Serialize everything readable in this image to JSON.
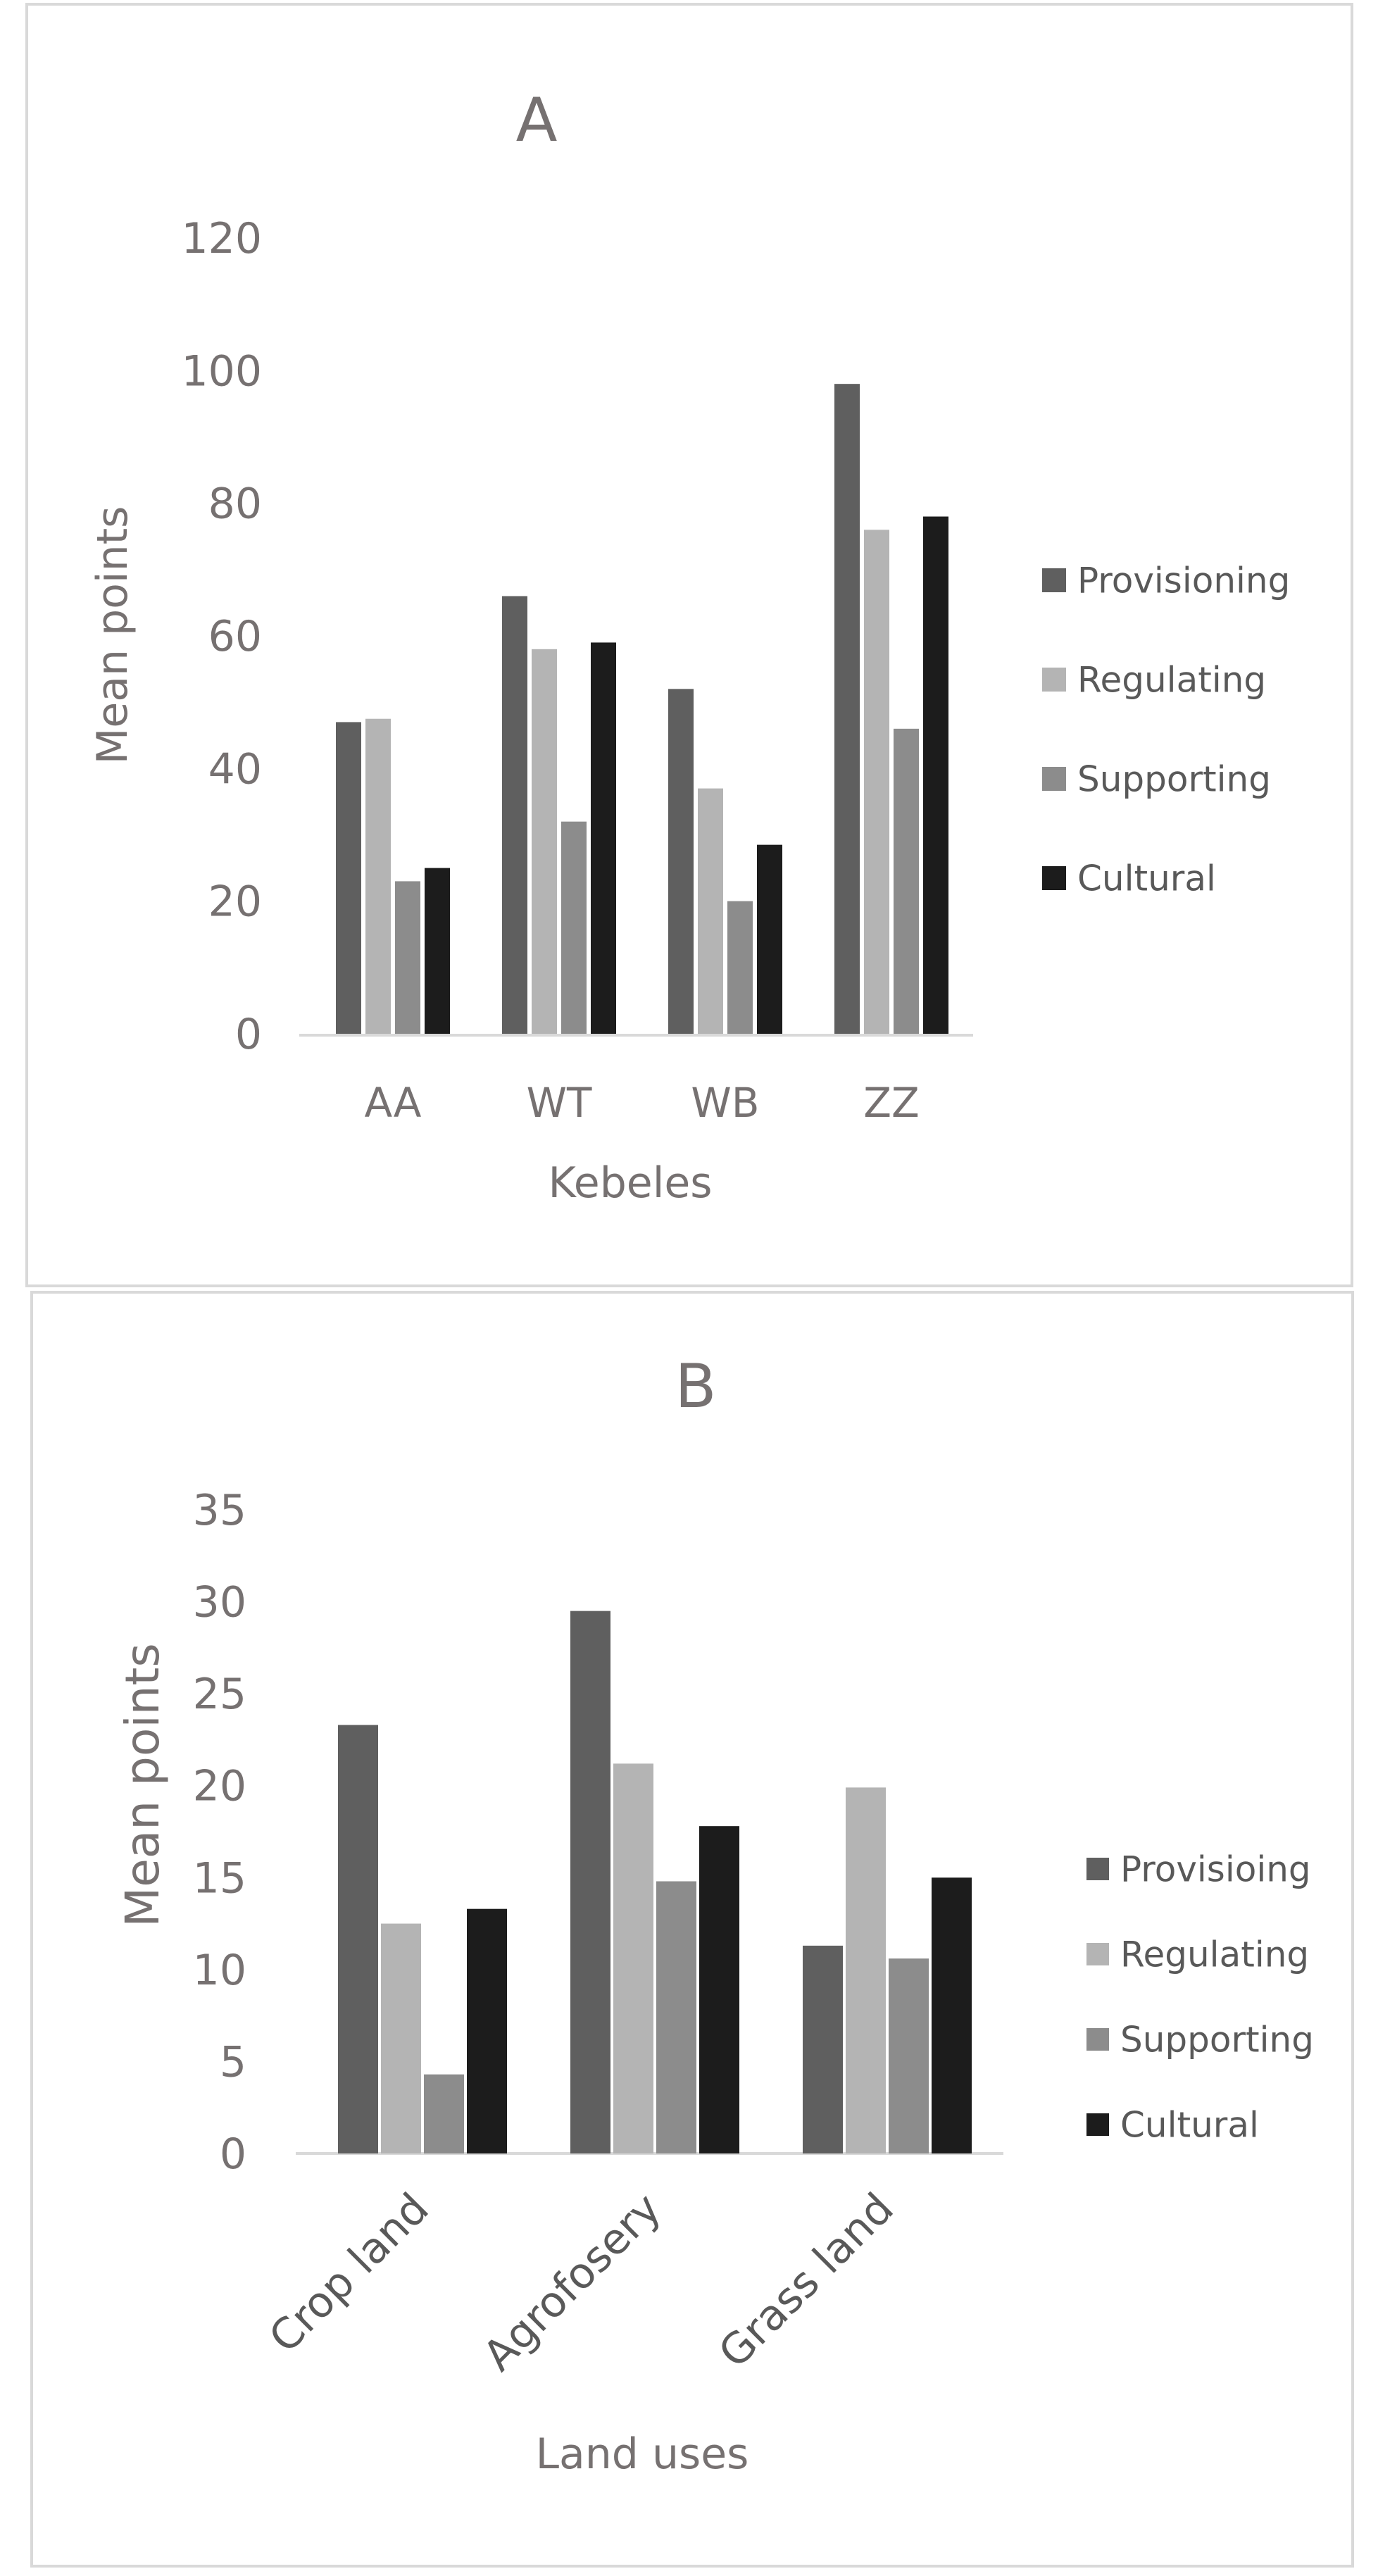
{
  "chart_data": [
    {
      "type": "bar",
      "title": "A",
      "xlabel": "Kebeles",
      "ylabel": "Mean points",
      "categories": [
        "AA",
        "WT",
        "WB",
        "ZZ"
      ],
      "ylim": [
        0,
        120
      ],
      "yticks": [
        "0",
        "20",
        "40",
        "60",
        "80",
        "100",
        "120"
      ],
      "grid": false,
      "legend_position": "right",
      "series": [
        {
          "name": "Provisioning",
          "color": "#5f5f5f",
          "values": [
            47,
            66,
            52,
            98
          ]
        },
        {
          "name": "Regulating",
          "color": "#b4b4b4",
          "values": [
            47.5,
            58,
            37,
            76
          ]
        },
        {
          "name": "Supporting",
          "color": "#8c8c8c",
          "values": [
            23,
            32,
            20,
            46
          ]
        },
        {
          "name": "Cultural",
          "color": "#1c1c1c",
          "values": [
            25,
            59,
            28.5,
            78
          ]
        }
      ]
    },
    {
      "type": "bar",
      "title": "B",
      "xlabel": "Land uses",
      "ylabel": "Mean points",
      "categories": [
        "Crop land",
        "Agrofosery",
        "Grass land"
      ],
      "ylim": [
        0,
        35
      ],
      "yticks": [
        "0",
        "5",
        "10",
        "15",
        "20",
        "25",
        "30",
        "35"
      ],
      "grid": false,
      "legend_position": "right",
      "series": [
        {
          "name": "Provisioing",
          "color": "#5f5f5f",
          "values": [
            23.3,
            29.5,
            11.3
          ]
        },
        {
          "name": "Regulating",
          "color": "#b4b4b4",
          "values": [
            12.5,
            21.2,
            19.9
          ]
        },
        {
          "name": "Supporting",
          "color": "#8c8c8c",
          "values": [
            4.3,
            14.8,
            10.6
          ]
        },
        {
          "name": "Cultural",
          "color": "#1c1c1c",
          "values": [
            13.3,
            17.8,
            15
          ]
        }
      ]
    }
  ]
}
